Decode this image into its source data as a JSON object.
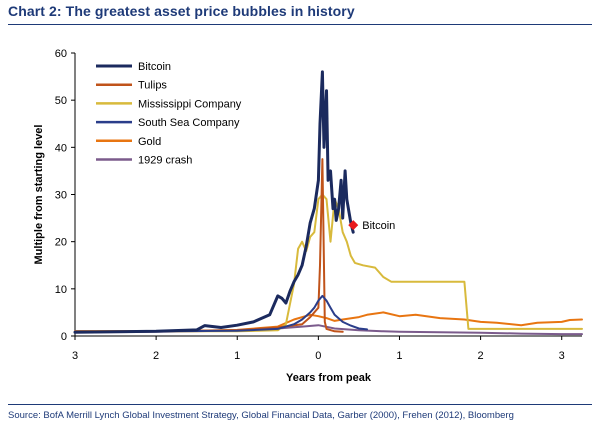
{
  "title": "Chart 2: The greatest asset price bubbles in history",
  "source": "Source:  BofA Merrill Lynch Global Investment Strategy, Global Financial Data, Garber (2000), Frehen (2012),  Bloomberg",
  "chart_data": {
    "type": "line",
    "xlabel": "Years from peak",
    "ylabel": "Multiple from starting level",
    "xlim": [
      -3,
      3.25
    ],
    "ylim": [
      0,
      60
    ],
    "x_ticks": [
      -3,
      -2,
      -1,
      0,
      1,
      2,
      3
    ],
    "x_tick_labels": [
      "3",
      "2",
      "1",
      "0",
      "1",
      "2",
      "3"
    ],
    "y_ticks": [
      0,
      10,
      20,
      30,
      40,
      50,
      60
    ],
    "legend_position": "top-left",
    "grid": false,
    "series": [
      {
        "name": "Bitcoin",
        "color": "#1b2a5e",
        "width": 3,
        "x": [
          -3.0,
          -2.5,
          -2.0,
          -1.5,
          -1.4,
          -1.2,
          -1.0,
          -0.8,
          -0.6,
          -0.5,
          -0.45,
          -0.4,
          -0.35,
          -0.3,
          -0.25,
          -0.2,
          -0.15,
          -0.1,
          -0.05,
          0.0,
          0.02,
          0.05,
          0.07,
          0.1,
          0.12,
          0.15,
          0.18,
          0.2,
          0.22,
          0.25,
          0.28,
          0.3,
          0.33,
          0.35,
          0.38,
          0.4,
          0.43
        ],
        "y": [
          0.8,
          0.9,
          1.0,
          1.3,
          2.2,
          1.8,
          2.3,
          3.0,
          4.5,
          8.5,
          8.0,
          7.0,
          9.5,
          11.5,
          13.0,
          15.0,
          19.0,
          24.0,
          27.0,
          33.0,
          45.0,
          56.0,
          40.0,
          52.0,
          33.0,
          35.0,
          27.0,
          29.0,
          24.5,
          27.0,
          33.0,
          25.0,
          35.0,
          29.0,
          26.0,
          24.0,
          22.0
        ]
      },
      {
        "name": "Tulips",
        "color": "#c0531a",
        "width": 2,
        "x": [
          -3.0,
          -2.0,
          -1.0,
          -0.5,
          -0.2,
          -0.1,
          0.0,
          0.02,
          0.05,
          0.08,
          0.1,
          0.2,
          0.3
        ],
        "y": [
          1.0,
          1.0,
          1.2,
          1.8,
          2.5,
          4.0,
          6.0,
          15.0,
          37.5,
          3.0,
          1.5,
          1.0,
          0.9
        ]
      },
      {
        "name": "Mississippi Company",
        "color": "#d8ba3c",
        "width": 2,
        "x": [
          -3.0,
          -1.0,
          -0.5,
          -0.4,
          -0.3,
          -0.25,
          -0.2,
          -0.15,
          -0.1,
          -0.05,
          0.0,
          0.05,
          0.1,
          0.15,
          0.2,
          0.25,
          0.3,
          0.35,
          0.4,
          0.45,
          0.55,
          0.7,
          0.8,
          0.9,
          1.0,
          1.2,
          1.3,
          1.5,
          1.8,
          1.85,
          2.0,
          2.5,
          3.0,
          3.25
        ],
        "y": [
          1.0,
          1.0,
          1.2,
          2.5,
          11.0,
          18.5,
          20.0,
          18.0,
          21.0,
          22.0,
          29.0,
          30.0,
          29.0,
          20.0,
          29.0,
          27.0,
          22.0,
          20.0,
          17.0,
          15.5,
          15.0,
          14.5,
          12.5,
          11.5,
          11.5,
          11.5,
          11.5,
          11.5,
          11.5,
          1.5,
          1.5,
          1.5,
          1.5,
          1.5
        ]
      },
      {
        "name": "South Sea Company",
        "color": "#2a3d8a",
        "width": 2,
        "x": [
          -3.0,
          -2.0,
          -1.0,
          -0.5,
          -0.3,
          -0.2,
          -0.1,
          -0.05,
          0.0,
          0.05,
          0.1,
          0.15,
          0.2,
          0.3,
          0.4,
          0.5,
          0.6
        ],
        "y": [
          0.9,
          1.0,
          1.1,
          1.5,
          2.5,
          3.5,
          5.0,
          6.0,
          7.5,
          8.5,
          7.5,
          6.0,
          4.5,
          3.0,
          2.2,
          1.6,
          1.4
        ]
      },
      {
        "name": "Gold",
        "color": "#e87511",
        "width": 2,
        "x": [
          -3.0,
          -2.5,
          -2.0,
          -1.5,
          -1.0,
          -0.5,
          -0.3,
          -0.1,
          0.0,
          0.1,
          0.2,
          0.3,
          0.5,
          0.6,
          0.8,
          1.0,
          1.2,
          1.5,
          1.8,
          2.0,
          2.2,
          2.5,
          2.7,
          3.0,
          3.1,
          3.25
        ],
        "y": [
          1.0,
          1.0,
          1.0,
          1.1,
          1.3,
          2.0,
          3.5,
          4.5,
          4.2,
          3.8,
          3.2,
          3.5,
          4.0,
          4.5,
          5.0,
          4.2,
          4.5,
          3.8,
          3.5,
          3.0,
          2.8,
          2.3,
          2.8,
          3.0,
          3.4,
          3.5
        ]
      },
      {
        "name": "1929 crash",
        "color": "#7b5b8c",
        "width": 2,
        "x": [
          -3.0,
          -2.0,
          -1.5,
          -1.0,
          -0.5,
          -0.2,
          0.0,
          0.2,
          0.5,
          0.8,
          1.0,
          1.5,
          2.0,
          2.5,
          3.0,
          3.25
        ],
        "y": [
          0.8,
          0.9,
          1.0,
          1.2,
          1.6,
          2.0,
          2.3,
          1.6,
          1.2,
          1.0,
          0.9,
          0.8,
          0.7,
          0.5,
          0.4,
          0.4
        ]
      }
    ],
    "annotations": [
      {
        "label": "Bitcoin",
        "x": 0.43,
        "y": 23.5,
        "marker_color": "#e8191c"
      }
    ]
  }
}
